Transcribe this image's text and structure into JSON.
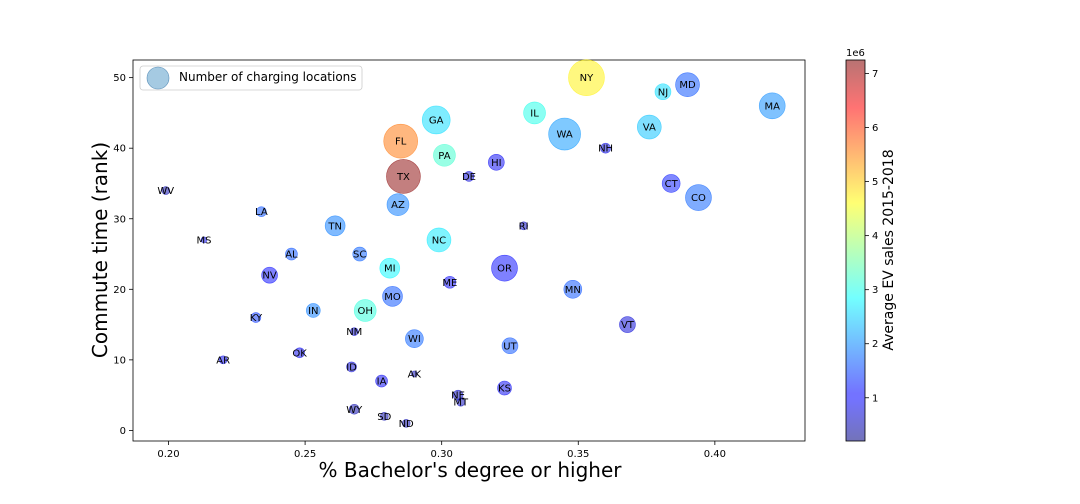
{
  "chart_data": {
    "type": "scatter",
    "xlabel": "% Bachelor's degree or higher",
    "ylabel": "Commute time (rank)",
    "xlim": [
      0.187,
      0.433
    ],
    "ylim": [
      -1.5,
      52.5
    ],
    "xticks": [
      "0.20",
      "0.25",
      "0.30",
      "0.35",
      "0.40"
    ],
    "xtick_values": [
      0.2,
      0.25,
      0.3,
      0.35,
      0.4
    ],
    "yticks": [
      "0",
      "10",
      "20",
      "30",
      "40",
      "50"
    ],
    "ytick_values": [
      0,
      10,
      20,
      30,
      40,
      50
    ],
    "legend": {
      "label": "Number of charging locations",
      "position": "upper-left"
    },
    "colorbar": {
      "label": "Average EV sales 2015-2018",
      "multiplier": "1e6",
      "ticks": [
        "1",
        "2",
        "3",
        "4",
        "5",
        "6",
        "7"
      ],
      "tick_values": [
        1,
        2,
        3,
        4,
        5,
        6,
        7
      ],
      "range": [
        0.2,
        7.25
      ],
      "colormap": "jet",
      "alpha": 0.5
    },
    "size_encoding": "Number of charging locations",
    "color_encoding": "Average EV sales 2015-2018",
    "points": [
      {
        "label": "NY",
        "x": 0.353,
        "y": 50,
        "size": 18,
        "color": 4.7
      },
      {
        "label": "MD",
        "x": 0.39,
        "y": 49,
        "size": 12,
        "color": 1.6
      },
      {
        "label": "NJ",
        "x": 0.381,
        "y": 48,
        "size": 8,
        "color": 2.6
      },
      {
        "label": "MA",
        "x": 0.421,
        "y": 46,
        "size": 13,
        "color": 2.0
      },
      {
        "label": "IL",
        "x": 0.334,
        "y": 45,
        "size": 11,
        "color": 3.0
      },
      {
        "label": "GA",
        "x": 0.298,
        "y": 44,
        "size": 14,
        "color": 2.6
      },
      {
        "label": "VA",
        "x": 0.376,
        "y": 43,
        "size": 12,
        "color": 2.4
      },
      {
        "label": "WA",
        "x": 0.345,
        "y": 42,
        "size": 16,
        "color": 2.1
      },
      {
        "label": "FL",
        "x": 0.285,
        "y": 41,
        "size": 17,
        "color": 5.6
      },
      {
        "label": "NH",
        "x": 0.36,
        "y": 40,
        "size": 5,
        "color": 0.9
      },
      {
        "label": "PA",
        "x": 0.301,
        "y": 39,
        "size": 11,
        "color": 3.2
      },
      {
        "label": "HI",
        "x": 0.32,
        "y": 38,
        "size": 8,
        "color": 1.0
      },
      {
        "label": "TX",
        "x": 0.286,
        "y": 36,
        "size": 17,
        "color": 7.2
      },
      {
        "label": "DE",
        "x": 0.31,
        "y": 36,
        "size": 5,
        "color": 0.8
      },
      {
        "label": "CT",
        "x": 0.384,
        "y": 35,
        "size": 9,
        "color": 1.2
      },
      {
        "label": "WV",
        "x": 0.199,
        "y": 34,
        "size": 4,
        "color": 0.5
      },
      {
        "label": "CO",
        "x": 0.394,
        "y": 33,
        "size": 13,
        "color": 1.7
      },
      {
        "label": "AZ",
        "x": 0.284,
        "y": 32,
        "size": 11,
        "color": 1.9
      },
      {
        "label": "LA",
        "x": 0.234,
        "y": 31,
        "size": 5,
        "color": 1.6
      },
      {
        "label": "TN",
        "x": 0.261,
        "y": 29,
        "size": 10,
        "color": 1.9
      },
      {
        "label": "RI",
        "x": 0.33,
        "y": 29,
        "size": 4,
        "color": 0.7
      },
      {
        "label": "MS",
        "x": 0.213,
        "y": 27,
        "size": 3,
        "color": 0.9
      },
      {
        "label": "NC",
        "x": 0.299,
        "y": 27,
        "size": 12,
        "color": 2.7
      },
      {
        "label": "SC",
        "x": 0.27,
        "y": 25,
        "size": 7,
        "color": 1.7
      },
      {
        "label": "AL",
        "x": 0.245,
        "y": 25,
        "size": 6,
        "color": 1.6
      },
      {
        "label": "MI",
        "x": 0.281,
        "y": 23,
        "size": 10,
        "color": 2.8
      },
      {
        "label": "OR",
        "x": 0.323,
        "y": 23,
        "size": 13,
        "color": 1.1
      },
      {
        "label": "NV",
        "x": 0.237,
        "y": 22,
        "size": 8,
        "color": 1.1
      },
      {
        "label": "ME",
        "x": 0.303,
        "y": 21,
        "size": 6,
        "color": 1.0
      },
      {
        "label": "MN",
        "x": 0.348,
        "y": 20,
        "size": 9,
        "color": 1.6
      },
      {
        "label": "MO",
        "x": 0.282,
        "y": 19,
        "size": 10,
        "color": 1.6
      },
      {
        "label": "IN",
        "x": 0.253,
        "y": 17,
        "size": 7,
        "color": 1.9
      },
      {
        "label": "OH",
        "x": 0.272,
        "y": 17,
        "size": 11,
        "color": 3.1
      },
      {
        "label": "KY",
        "x": 0.232,
        "y": 16,
        "size": 5,
        "color": 1.4
      },
      {
        "label": "VT",
        "x": 0.368,
        "y": 15,
        "size": 8,
        "color": 0.8
      },
      {
        "label": "NM",
        "x": 0.268,
        "y": 14,
        "size": 4,
        "color": 0.8
      },
      {
        "label": "WI",
        "x": 0.29,
        "y": 13,
        "size": 9,
        "color": 1.7
      },
      {
        "label": "UT",
        "x": 0.325,
        "y": 12,
        "size": 8,
        "color": 1.6
      },
      {
        "label": "OK",
        "x": 0.248,
        "y": 11,
        "size": 5,
        "color": 1.0
      },
      {
        "label": "AR",
        "x": 0.22,
        "y": 10,
        "size": 4,
        "color": 1.0
      },
      {
        "label": "ID",
        "x": 0.267,
        "y": 9,
        "size": 5,
        "color": 0.8
      },
      {
        "label": "AK",
        "x": 0.29,
        "y": 8,
        "size": 3,
        "color": 0.6
      },
      {
        "label": "IA",
        "x": 0.278,
        "y": 7,
        "size": 6,
        "color": 1.0
      },
      {
        "label": "KS",
        "x": 0.323,
        "y": 6,
        "size": 7,
        "color": 1.0
      },
      {
        "label": "NE",
        "x": 0.306,
        "y": 5,
        "size": 5,
        "color": 0.7
      },
      {
        "label": "MT",
        "x": 0.307,
        "y": 4,
        "size": 4,
        "color": 0.6
      },
      {
        "label": "WY",
        "x": 0.268,
        "y": 3,
        "size": 5,
        "color": 0.5
      },
      {
        "label": "SD",
        "x": 0.279,
        "y": 2,
        "size": 4,
        "color": 0.5
      },
      {
        "label": "ND",
        "x": 0.287,
        "y": 1,
        "size": 4,
        "color": 0.5
      }
    ]
  }
}
